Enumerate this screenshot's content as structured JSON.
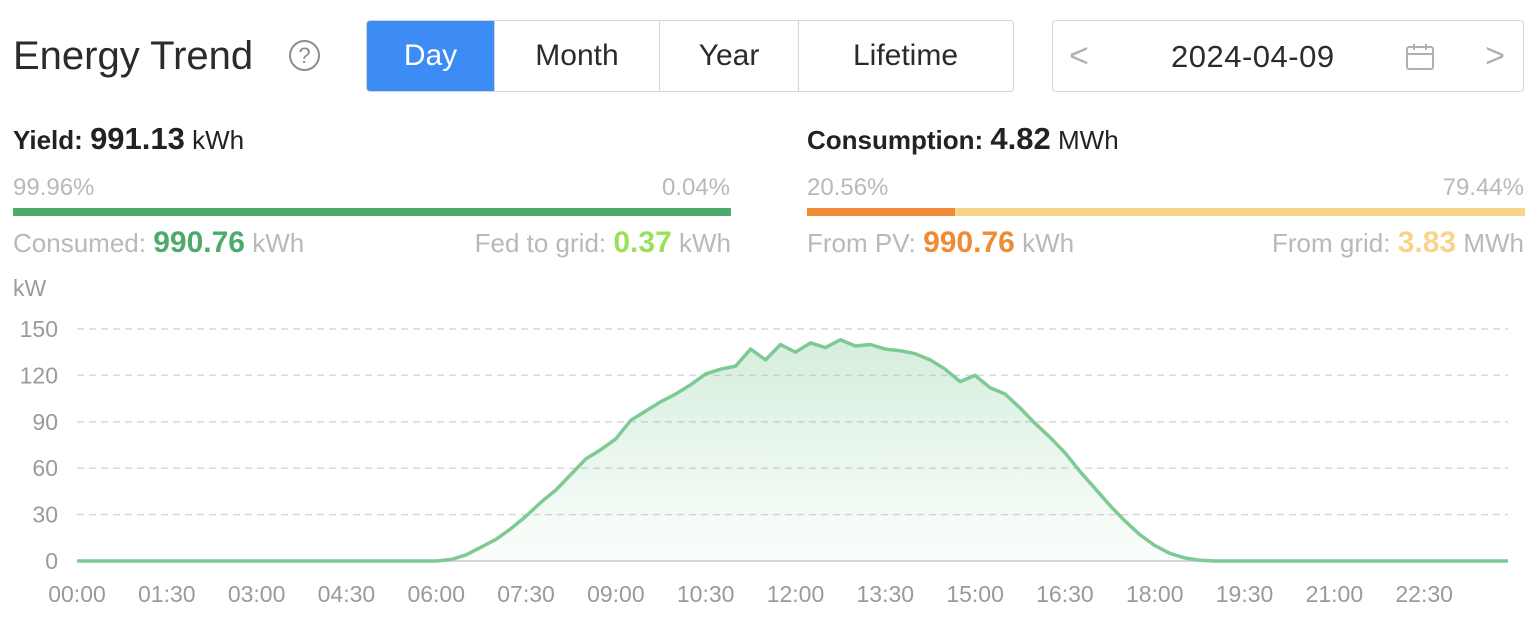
{
  "header": {
    "title": "Energy Trend",
    "help_icon": "question-circle-icon",
    "help_symbol": "?"
  },
  "tabs": [
    {
      "label": "Day",
      "active": true
    },
    {
      "label": "Month",
      "active": false
    },
    {
      "label": "Year",
      "active": false
    },
    {
      "label": "Lifetime",
      "active": false
    }
  ],
  "date_picker": {
    "value": "2024-04-09",
    "prev_icon": "chevron-left-icon",
    "next_icon": "chevron-right-icon",
    "calendar_icon": "calendar-icon",
    "prev_symbol": "<",
    "next_symbol": ">"
  },
  "yield": {
    "label": "Yield:",
    "value": "991.13",
    "unit": "kWh",
    "consumed_pct": "99.96%",
    "fed_pct": "0.04%",
    "consumed_fraction": 0.9996,
    "consumed_label": "Consumed:",
    "consumed_value": "990.76",
    "consumed_unit": "kWh",
    "fed_label": "Fed to grid:",
    "fed_value": "0.37",
    "fed_unit": "kWh",
    "colors": {
      "consumed": "#4caa6a",
      "fed": "#9be05a"
    }
  },
  "consumption": {
    "label": "Consumption:",
    "value": "4.82",
    "unit": "MWh",
    "pv_pct": "20.56%",
    "grid_pct": "79.44%",
    "pv_fraction": 0.2056,
    "pv_label": "From PV:",
    "pv_value": "990.76",
    "pv_unit": "kWh",
    "grid_label": "From grid:",
    "grid_value": "3.83",
    "grid_unit": "MWh",
    "colors": {
      "pv": "#ef8a35",
      "grid": "#f8d48a"
    }
  },
  "chart_data": {
    "type": "area",
    "ylabel": "kW",
    "ylim": [
      0,
      150
    ],
    "yticks": [
      0,
      30,
      60,
      90,
      120,
      150
    ],
    "xticks": [
      "00:00",
      "01:30",
      "03:00",
      "04:30",
      "06:00",
      "07:30",
      "09:00",
      "10:30",
      "12:00",
      "13:30",
      "15:00",
      "16:30",
      "18:00",
      "19:30",
      "21:00",
      "22:30"
    ],
    "xlim_hours": [
      0,
      23.9
    ],
    "grid": true,
    "line_color": "#7dca94",
    "series": [
      {
        "x": [
          0,
          6.0,
          6.25,
          6.5,
          6.75,
          7.0,
          7.25,
          7.5,
          7.75,
          8.0,
          8.25,
          8.5,
          8.75,
          9.0,
          9.25,
          9.5,
          9.75,
          10.0,
          10.25,
          10.5,
          10.75,
          11.0,
          11.25,
          11.5,
          11.75,
          12.0,
          12.25,
          12.5,
          12.75,
          13.0,
          13.25,
          13.5,
          13.75,
          14.0,
          14.25,
          14.5,
          14.75,
          15.0,
          15.25,
          15.5,
          15.75,
          16.0,
          16.25,
          16.5,
          16.75,
          17.0,
          17.25,
          17.5,
          17.75,
          18.0,
          18.25,
          18.5,
          18.75,
          19.0,
          19.5,
          23.9
        ],
        "y": [
          0,
          0,
          1,
          4,
          9,
          14,
          21,
          29,
          38,
          46,
          56,
          66,
          72,
          79,
          91,
          97,
          103,
          108,
          114,
          121,
          124,
          126,
          137,
          130,
          140,
          135,
          141,
          138,
          143,
          139,
          140,
          137,
          136,
          134,
          130,
          124,
          116,
          120,
          112,
          108,
          99,
          89,
          80,
          70,
          58,
          47,
          36,
          26,
          17,
          10,
          5,
          2,
          0.5,
          0,
          0,
          0
        ]
      }
    ]
  }
}
